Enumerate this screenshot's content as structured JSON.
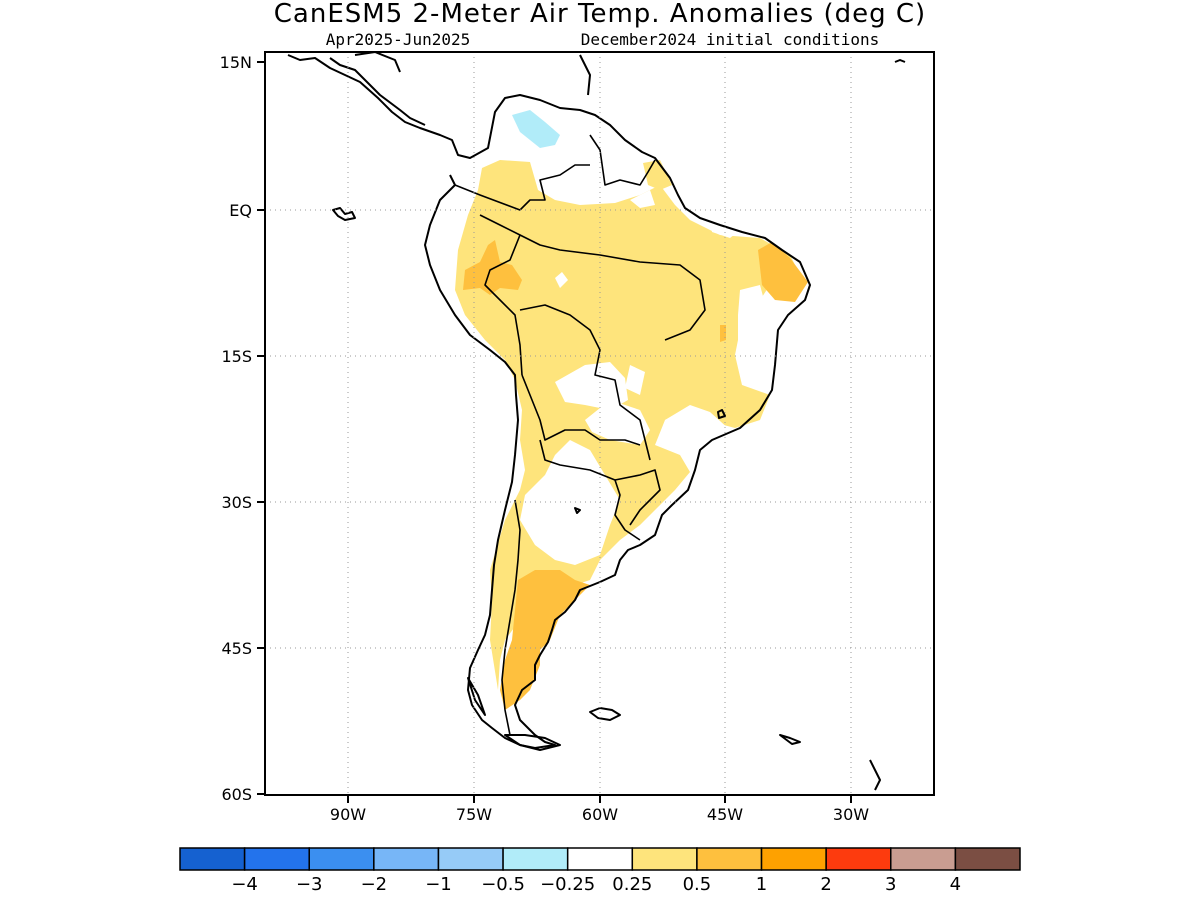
{
  "title": "CanESM5 2-Meter Air Temp. Anomalies (deg C)",
  "subtitle_left": "Apr2025-Jun2025",
  "subtitle_right": "December2024 initial conditions",
  "map": {
    "lon_range": [
      -98,
      -25
    ],
    "lat_range": [
      -60,
      15
    ],
    "lat_ticks": [
      {
        "value": 15,
        "label": "15N"
      },
      {
        "value": 0,
        "label": "EQ"
      },
      {
        "value": -15,
        "label": "15S"
      },
      {
        "value": -30,
        "label": "30S"
      },
      {
        "value": -45,
        "label": "45S"
      },
      {
        "value": -60,
        "label": "60S"
      }
    ],
    "lon_ticks": [
      {
        "value": -90,
        "label": "90W"
      },
      {
        "value": -75,
        "label": "75W"
      },
      {
        "value": -60,
        "label": "60W"
      },
      {
        "value": -45,
        "label": "45W"
      },
      {
        "value": -30,
        "label": "30W"
      }
    ],
    "grid": true
  },
  "colorbar": {
    "colors": [
      "#1561d0",
      "#2373ec",
      "#3b8ff0",
      "#77b6f7",
      "#96cbf7",
      "#b1ecf9",
      "#ffffff",
      "#fee47c",
      "#fec03e",
      "#fea100",
      "#fd3b0e",
      "#c99d91",
      "#7b4e43"
    ],
    "labels": [
      "-4",
      "-3",
      "-2",
      "-1",
      "-0.5",
      "-0.25",
      "0.25",
      "0.5",
      "1",
      "2",
      "3",
      "4"
    ]
  },
  "colors": {
    "anomaly_025_05": "#fee47c",
    "anomaly_05_1": "#fec03e",
    "anomaly_neg025_neg05": "#b1ecf9"
  }
}
